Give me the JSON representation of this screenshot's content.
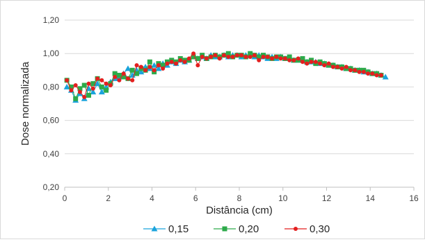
{
  "chart_data": {
    "type": "line",
    "title": "",
    "xlabel": "Distância (cm)",
    "ylabel": "Dose normalizada",
    "xlim": [
      0,
      16
    ],
    "ylim": [
      0.2,
      1.2
    ],
    "x_ticks": [
      "0",
      "2",
      "4",
      "6",
      "8",
      "10",
      "12",
      "14",
      "16"
    ],
    "y_ticks": [
      "0,20",
      "0,40",
      "0,60",
      "0,80",
      "1,00",
      "1,20"
    ],
    "grid": "horizontal",
    "legend_position": "bottom",
    "series": [
      {
        "name": "0,15",
        "color": "#1aa3dc",
        "marker": "triangle",
        "x": [
          0.1,
          0.3,
          0.5,
          0.7,
          0.9,
          1.1,
          1.3,
          1.5,
          1.7,
          1.9,
          2.1,
          2.3,
          2.5,
          2.7,
          2.9,
          3.1,
          3.3,
          3.5,
          3.7,
          3.9,
          4.1,
          4.3,
          4.5,
          4.7,
          4.9,
          5.1,
          5.3,
          5.5,
          5.7,
          5.9,
          6.1,
          6.3,
          6.5,
          6.7,
          6.9,
          7.1,
          7.3,
          7.5,
          7.7,
          7.9,
          8.1,
          8.3,
          8.5,
          8.7,
          8.9,
          9.1,
          9.3,
          9.5,
          9.7,
          9.9,
          10.1,
          10.3,
          10.5,
          10.7,
          10.9,
          11.1,
          11.3,
          11.5,
          11.7,
          11.9,
          12.1,
          12.3,
          12.5,
          12.7,
          12.9,
          13.1,
          13.3,
          13.5,
          13.7,
          13.9,
          14.1,
          14.3,
          14.5,
          14.7
        ],
        "y": [
          0.8,
          0.78,
          0.72,
          0.76,
          0.73,
          0.79,
          0.77,
          0.82,
          0.77,
          0.8,
          0.83,
          0.85,
          0.86,
          0.88,
          0.91,
          0.87,
          0.9,
          0.89,
          0.92,
          0.91,
          0.93,
          0.91,
          0.94,
          0.93,
          0.95,
          0.94,
          0.96,
          0.95,
          0.96,
          0.98,
          0.97,
          0.98,
          0.97,
          0.99,
          0.98,
          0.98,
          0.99,
          0.98,
          0.99,
          0.99,
          0.98,
          0.99,
          0.99,
          0.98,
          0.99,
          0.98,
          0.97,
          0.98,
          0.97,
          0.98,
          0.97,
          0.97,
          0.96,
          0.96,
          0.96,
          0.95,
          0.95,
          0.95,
          0.94,
          0.94,
          0.93,
          0.93,
          0.92,
          0.92,
          0.91,
          0.91,
          0.9,
          0.9,
          0.89,
          0.89,
          0.88,
          0.88,
          0.87,
          0.86
        ]
      },
      {
        "name": "0,20",
        "color": "#2daa4a",
        "marker": "square",
        "x": [
          0.1,
          0.3,
          0.5,
          0.7,
          0.9,
          1.1,
          1.3,
          1.5,
          1.7,
          1.9,
          2.1,
          2.3,
          2.5,
          2.7,
          2.9,
          3.1,
          3.3,
          3.5,
          3.7,
          3.9,
          4.1,
          4.3,
          4.5,
          4.7,
          4.9,
          5.1,
          5.3,
          5.5,
          5.7,
          5.9,
          6.1,
          6.3,
          6.5,
          6.7,
          6.9,
          7.1,
          7.3,
          7.5,
          7.7,
          7.9,
          8.1,
          8.3,
          8.5,
          8.7,
          8.9,
          9.1,
          9.3,
          9.5,
          9.7,
          9.9,
          10.1,
          10.3,
          10.5,
          10.7,
          10.9,
          11.1,
          11.3,
          11.5,
          11.7,
          11.9,
          12.1,
          12.3,
          12.5,
          12.7,
          12.9,
          13.1,
          13.3,
          13.5,
          13.7,
          13.9,
          14.1,
          14.3,
          14.5
        ],
        "y": [
          0.84,
          0.8,
          0.73,
          0.79,
          0.81,
          0.75,
          0.82,
          0.85,
          0.8,
          0.78,
          0.82,
          0.88,
          0.87,
          0.86,
          0.85,
          0.9,
          0.88,
          0.91,
          0.9,
          0.95,
          0.89,
          0.94,
          0.93,
          0.95,
          0.96,
          0.95,
          0.97,
          0.96,
          0.96,
          0.98,
          0.97,
          0.99,
          0.97,
          0.98,
          0.99,
          0.98,
          0.99,
          1.0,
          0.98,
          0.99,
          0.99,
          0.98,
          1.0,
          0.99,
          0.98,
          0.99,
          0.98,
          0.97,
          0.98,
          0.98,
          0.97,
          0.98,
          0.96,
          0.96,
          0.97,
          0.95,
          0.96,
          0.94,
          0.95,
          0.94,
          0.93,
          0.93,
          0.92,
          0.92,
          0.91,
          0.91,
          0.9,
          0.9,
          0.9,
          0.89,
          0.88,
          0.88,
          0.87
        ]
      },
      {
        "name": "0,30",
        "color": "#e41f1f",
        "marker": "circle",
        "x": [
          0.1,
          0.3,
          0.5,
          0.7,
          0.9,
          1.1,
          1.3,
          1.5,
          1.7,
          1.9,
          2.1,
          2.3,
          2.5,
          2.7,
          2.9,
          3.1,
          3.3,
          3.5,
          3.7,
          3.9,
          4.1,
          4.3,
          4.5,
          4.7,
          4.9,
          5.1,
          5.3,
          5.5,
          5.7,
          5.9,
          6.1,
          6.3,
          6.5,
          6.7,
          6.9,
          7.1,
          7.3,
          7.5,
          7.7,
          7.9,
          8.1,
          8.3,
          8.5,
          8.7,
          8.9,
          9.1,
          9.3,
          9.5,
          9.7,
          9.9,
          10.1,
          10.3,
          10.5,
          10.7,
          10.9,
          11.1,
          11.3,
          11.5,
          11.7,
          11.9,
          12.1,
          12.3,
          12.5,
          12.7,
          12.9,
          13.1,
          13.3,
          13.5,
          13.7,
          13.9,
          14.1,
          14.3,
          14.5
        ],
        "y": [
          0.84,
          0.78,
          0.81,
          0.77,
          0.74,
          0.82,
          0.79,
          0.85,
          0.84,
          0.82,
          0.81,
          0.86,
          0.84,
          0.88,
          0.85,
          0.84,
          0.93,
          0.92,
          0.9,
          0.92,
          0.9,
          0.93,
          0.91,
          0.94,
          0.95,
          0.94,
          0.96,
          0.95,
          0.97,
          1.0,
          0.93,
          0.98,
          0.97,
          0.98,
          0.99,
          0.97,
          0.99,
          0.98,
          0.98,
          0.99,
          0.99,
          0.98,
          0.98,
          0.99,
          0.96,
          0.98,
          0.98,
          0.97,
          0.98,
          0.97,
          0.97,
          0.96,
          0.96,
          0.97,
          0.95,
          0.94,
          0.95,
          0.95,
          0.94,
          0.93,
          0.94,
          0.92,
          0.92,
          0.91,
          0.92,
          0.9,
          0.9,
          0.89,
          0.89,
          0.88,
          0.88,
          0.87,
          0.87
        ]
      }
    ]
  }
}
